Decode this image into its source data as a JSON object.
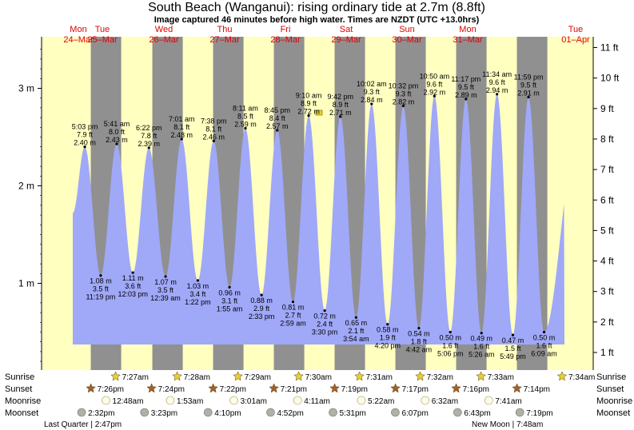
{
  "title": "South Beach (Wanganui): rising  ordinary tide at 2.7m (8.8ft)",
  "subtitle": "Image captured 46 minutes before high water. Times are NZDT (UTC +13.0hrs)",
  "colors": {
    "day": "#ffffc0",
    "night": "#909090",
    "tide": "#a0a8f8",
    "day_label": "#e00000",
    "sun": "#e8d030",
    "sunset": "#a06030",
    "moon": "#fffde0",
    "moonset": "#b0b0a8"
  },
  "chart_data": {
    "type": "area",
    "y_unit_left": "m",
    "y_unit_right": "ft",
    "left_ticks": [
      "1 m",
      "2 m",
      "3 m"
    ],
    "right_ticks": [
      "1 ft",
      "2 ft",
      "3 ft",
      "4 ft",
      "5 ft",
      "6 ft",
      "7 ft",
      "8 ft",
      "9 ft",
      "10 ft",
      "11 ft"
    ],
    "days": [
      {
        "dow": "Mon",
        "date": "24–Mar"
      },
      {
        "dow": "Tue",
        "date": "25–Mar"
      },
      {
        "dow": "Wed",
        "date": "26–Mar"
      },
      {
        "dow": "Thu",
        "date": "27–Mar"
      },
      {
        "dow": "Fri",
        "date": "28–Mar"
      },
      {
        "dow": "Sat",
        "date": "29–Mar"
      },
      {
        "dow": "Sun",
        "date": "30–Mar"
      },
      {
        "dow": "Mon",
        "date": "31–Mar"
      },
      {
        "dow": "Tue",
        "date": "01–Apr"
      }
    ],
    "highs": [
      {
        "time": "5:03 pm",
        "ft": "7.9 ft",
        "m": "2.40 m"
      },
      {
        "time": "5:41 am",
        "ft": "8.0 ft",
        "m": "2.43 m"
      },
      {
        "time": "6:22 pm",
        "ft": "7.8 ft",
        "m": "2.39 m"
      },
      {
        "time": "7:01 am",
        "ft": "8.1 ft",
        "m": "2.48 m"
      },
      {
        "time": "7:38 pm",
        "ft": "8.1 ft",
        "m": "2.46 m"
      },
      {
        "time": "8:11 am",
        "ft": "8.5 ft",
        "m": "2.59 m"
      },
      {
        "time": "8:45 pm",
        "ft": "8.4 ft",
        "m": "2.57 m"
      },
      {
        "time": "9:10 am",
        "ft": "8.9 ft",
        "m": "2.72 m"
      },
      {
        "time": "9:42 pm",
        "ft": "8.9 ft",
        "m": "2.71 m"
      },
      {
        "time": "10:02 am",
        "ft": "9.3 ft",
        "m": "2.84 m"
      },
      {
        "time": "10:32 pm",
        "ft": "9.3 ft",
        "m": "2.82 m"
      },
      {
        "time": "10:50 am",
        "ft": "9.6 ft",
        "m": "2.92 m"
      },
      {
        "time": "11:17 pm",
        "ft": "9.5 ft",
        "m": "2.89 m"
      },
      {
        "time": "11:34 am",
        "ft": "9.6 ft",
        "m": "2.94 m"
      },
      {
        "time": "11:59 pm",
        "ft": "9.5 ft",
        "m": "2.91 m"
      }
    ],
    "lows": [
      {
        "m": "1.08 m",
        "ft": "3.5 ft",
        "time": "11:19 pm"
      },
      {
        "m": "1.11 m",
        "ft": "3.6 ft",
        "time": "12:03 pm"
      },
      {
        "m": "1.07 m",
        "ft": "3.5 ft",
        "time": "12:39 am"
      },
      {
        "m": "1.03 m",
        "ft": "3.4 ft",
        "time": "1:22 pm"
      },
      {
        "m": "0.96 m",
        "ft": "3.1 ft",
        "time": "1:55 am"
      },
      {
        "m": "0.88 m",
        "ft": "2.9 ft",
        "time": "2:33 pm"
      },
      {
        "m": "0.81 m",
        "ft": "2.7 ft",
        "time": "2:59 am"
      },
      {
        "m": "0.72 m",
        "ft": "2.4 ft",
        "time": "3:30 pm"
      },
      {
        "m": "0.65 m",
        "ft": "2.1 ft",
        "time": "3:54 am"
      },
      {
        "m": "0.58 m",
        "ft": "1.9 ft",
        "time": "4:20 pm"
      },
      {
        "m": "0.54 m",
        "ft": "1.8 ft",
        "time": "4:42 am"
      },
      {
        "m": "0.50 m",
        "ft": "1.6 ft",
        "time": "5:06 pm"
      },
      {
        "m": "0.49 m",
        "ft": "1.6 ft",
        "time": "5:26 am"
      },
      {
        "m": "0.47 m",
        "ft": "1.5 ft",
        "time": "5:49 pm"
      },
      {
        "m": "0.50 m",
        "ft": "1.6 ft",
        "time": "6:09 am"
      }
    ],
    "rows": {
      "sunrise_label": "Sunrise",
      "sunset_label": "Sunset",
      "moonrise_label": "Moonrise",
      "moonset_label": "Moonset",
      "sunrise": [
        "7:27am",
        "7:28am",
        "7:29am",
        "7:30am",
        "7:31am",
        "7:32am",
        "7:33am",
        "7:34am"
      ],
      "sunset": [
        "7:26pm",
        "7:24pm",
        "7:22pm",
        "7:21pm",
        "7:19pm",
        "7:17pm",
        "7:16pm",
        "7:14pm"
      ],
      "moonrise": [
        "12:48am",
        "1:53am",
        "3:01am",
        "4:11am",
        "5:22am",
        "6:32am",
        "7:41am"
      ],
      "moonset": [
        "2:32pm",
        "3:23pm",
        "4:10pm",
        "4:52pm",
        "5:31pm",
        "6:07pm",
        "6:43pm",
        "7:19pm"
      ],
      "last_quarter": "Last Quarter | 2:47pm",
      "new_moon": "New Moon | 7:48am"
    }
  }
}
